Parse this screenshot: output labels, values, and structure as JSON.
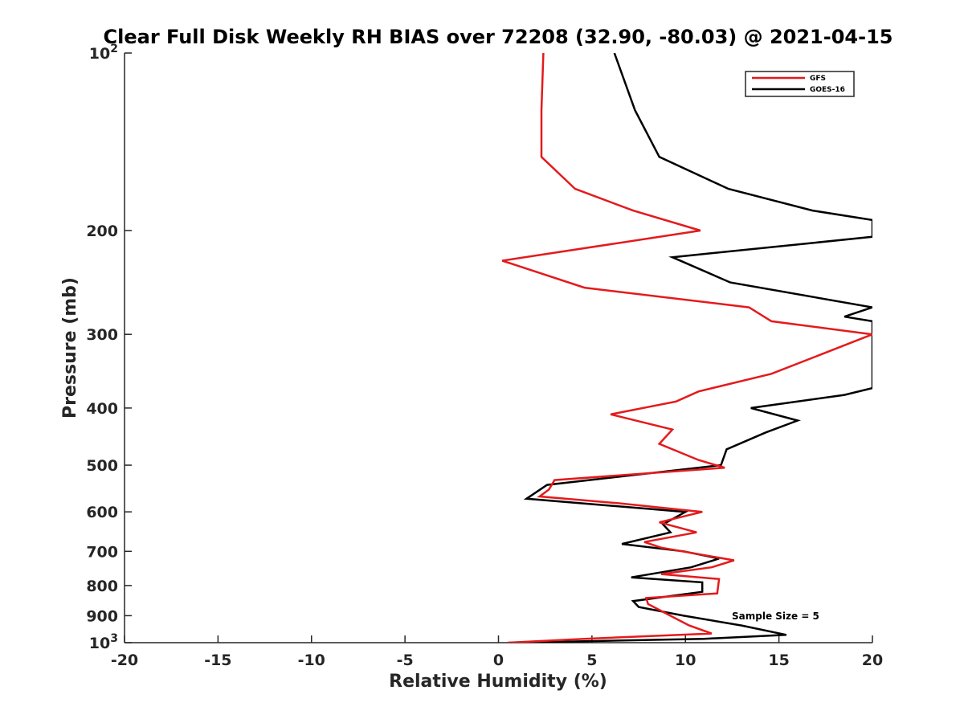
{
  "chart_data": {
    "type": "line",
    "title": "Clear Full Disk Weekly RH BIAS over 72208 (32.90, -80.03) @ 2021-04-15",
    "xlabel": "Relative Humidity (%)",
    "ylabel": "Pressure (mb)",
    "xlim": [
      -20,
      20
    ],
    "ylim": [
      100,
      1000
    ],
    "yscale": "log",
    "y_reversed": true,
    "x_ticks": [
      "-20",
      "-15",
      "-10",
      "-5",
      "0",
      "5",
      "10",
      "15",
      "20"
    ],
    "y_ticks": [
      {
        "value": 100,
        "label": "10",
        "sup": "2"
      },
      {
        "value": 200,
        "label": "200"
      },
      {
        "value": 300,
        "label": "300"
      },
      {
        "value": 400,
        "label": "400"
      },
      {
        "value": 500,
        "label": "500"
      },
      {
        "value": 600,
        "label": "600"
      },
      {
        "value": 700,
        "label": "700"
      },
      {
        "value": 800,
        "label": "800"
      },
      {
        "value": 900,
        "label": "900"
      },
      {
        "value": 1000,
        "label": "10",
        "sup": "3"
      }
    ],
    "legend_position": "top-right",
    "annotation": "Sample Size = 5",
    "series": [
      {
        "name": "GFS",
        "color": "#e41a1c",
        "points": [
          [
            2.4,
            100
          ],
          [
            2.3,
            125
          ],
          [
            2.3,
            150
          ],
          [
            4.1,
            170
          ],
          [
            7.2,
            185
          ],
          [
            10.8,
            200
          ],
          [
            0.2,
            225
          ],
          [
            4.6,
            250
          ],
          [
            13.4,
            270
          ],
          [
            14.6,
            285
          ],
          [
            20.0,
            300
          ],
          [
            17.2,
            325
          ],
          [
            14.6,
            350
          ],
          [
            10.7,
            375
          ],
          [
            9.5,
            390
          ],
          [
            6.0,
            410
          ],
          [
            9.3,
            435
          ],
          [
            8.6,
            460
          ],
          [
            10.7,
            490
          ],
          [
            12.1,
            505
          ],
          [
            3.0,
            530
          ],
          [
            2.7,
            550
          ],
          [
            2.2,
            565
          ],
          [
            6.4,
            580
          ],
          [
            10.9,
            600
          ],
          [
            8.6,
            625
          ],
          [
            10.6,
            650
          ],
          [
            7.8,
            675
          ],
          [
            8.7,
            690
          ],
          [
            12.6,
            725
          ],
          [
            11.4,
            745
          ],
          [
            8.7,
            765
          ],
          [
            11.8,
            780
          ],
          [
            11.7,
            825
          ],
          [
            7.9,
            840
          ],
          [
            8.0,
            860
          ],
          [
            8.9,
            890
          ],
          [
            10.2,
            935
          ],
          [
            11.4,
            965
          ],
          [
            4.6,
            985
          ],
          [
            0.5,
            1000
          ]
        ]
      },
      {
        "name": "GOES-16",
        "color": "#000000",
        "points": [
          [
            6.2,
            100
          ],
          [
            7.3,
            125
          ],
          [
            8.6,
            150
          ],
          [
            12.3,
            170
          ],
          [
            16.8,
            185
          ],
          [
            20.0,
            192
          ],
          [
            20.0,
            205
          ],
          [
            9.3,
            222
          ],
          [
            12.4,
            245
          ],
          [
            20.0,
            270
          ],
          [
            18.5,
            280
          ],
          [
            20.0,
            285
          ],
          [
            20.0,
            370
          ],
          [
            18.5,
            380
          ],
          [
            13.5,
            400
          ],
          [
            16.0,
            420
          ],
          [
            14.3,
            440
          ],
          [
            12.2,
            470
          ],
          [
            11.9,
            500
          ],
          [
            2.6,
            540
          ],
          [
            1.5,
            570
          ],
          [
            10.0,
            600
          ],
          [
            8.8,
            630
          ],
          [
            9.2,
            650
          ],
          [
            6.6,
            680
          ],
          [
            9.9,
            700
          ],
          [
            11.8,
            720
          ],
          [
            10.3,
            745
          ],
          [
            7.1,
            775
          ],
          [
            10.9,
            790
          ],
          [
            10.9,
            820
          ],
          [
            7.2,
            850
          ],
          [
            7.5,
            870
          ],
          [
            9.9,
            900
          ],
          [
            13.0,
            935
          ],
          [
            15.4,
            970
          ],
          [
            11.0,
            985
          ],
          [
            1.0,
            1000
          ]
        ]
      }
    ]
  }
}
